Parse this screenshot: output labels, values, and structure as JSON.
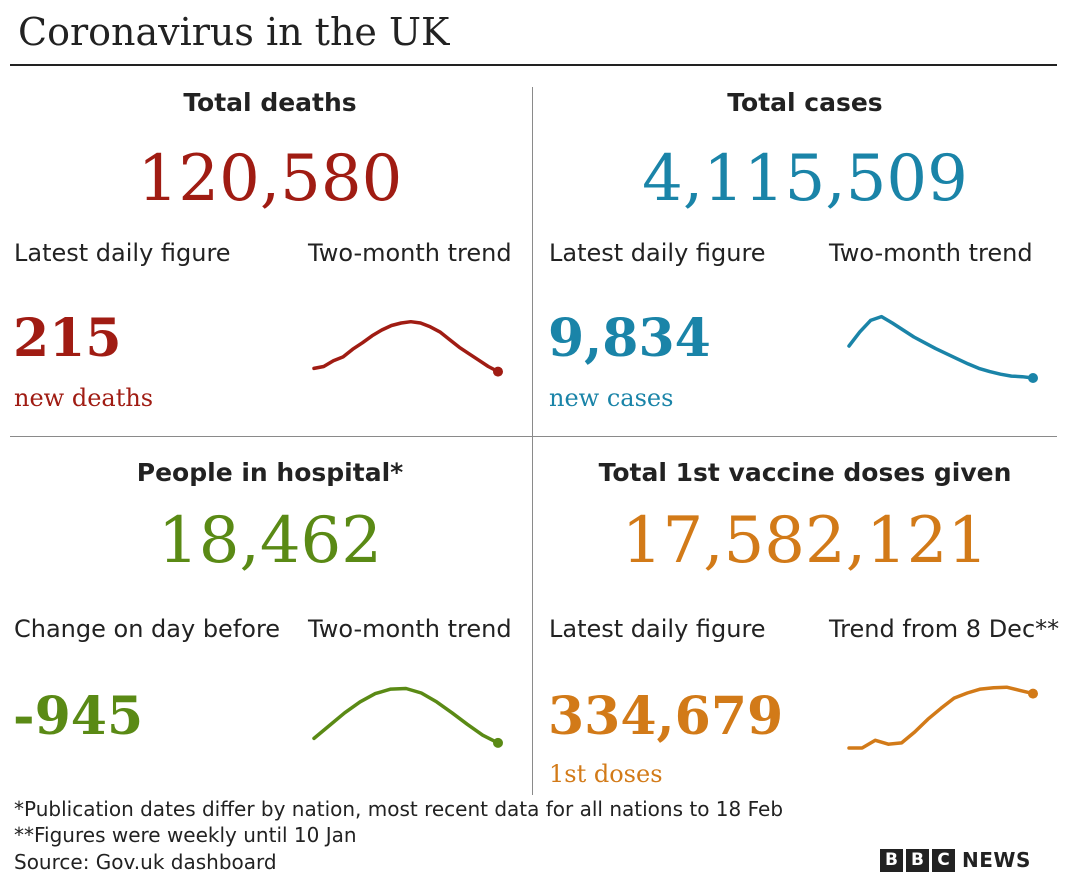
{
  "title": "Coronavirus in the UK",
  "colors": {
    "deaths": "#a01c13",
    "cases": "#1a84a8",
    "hospital": "#5a8a15",
    "vaccine": "#d27a18",
    "text": "#222222"
  },
  "panels": {
    "deaths": {
      "heading": "Total deaths",
      "total": "120,580",
      "left_label": "Latest daily figure",
      "right_label": "Two-month trend",
      "daily": "215",
      "sub": "new deaths"
    },
    "cases": {
      "heading": "Total cases",
      "total": "4,115,509",
      "left_label": "Latest daily figure",
      "right_label": "Two-month trend",
      "daily": "9,834",
      "sub": "new cases"
    },
    "hospital": {
      "heading": "People in hospital*",
      "total": "18,462",
      "left_label": "Change on day before",
      "right_label": "Two-month trend",
      "daily": "-945"
    },
    "vaccine": {
      "heading": "Total 1st vaccine doses given",
      "total": "17,582,121",
      "left_label": "Latest daily figure",
      "right_label": "Trend from 8 Dec**",
      "daily": "334,679",
      "sub": "1st doses"
    }
  },
  "footnotes": [
    "*Publication dates differ by nation, most recent data for all nations to 18 Feb",
    "**Figures were weekly until 10 Jan",
    "Source: Gov.uk dashboard"
  ],
  "logo": {
    "blocks": [
      "B",
      "B",
      "C"
    ],
    "word": "NEWS"
  },
  "chart_data": [
    {
      "type": "line",
      "name": "deaths-trend",
      "ylim": [
        0,
        1
      ],
      "values": [
        0.15,
        0.18,
        0.27,
        0.33,
        0.45,
        0.55,
        0.66,
        0.75,
        0.82,
        0.86,
        0.88,
        0.86,
        0.8,
        0.72,
        0.6,
        0.48,
        0.38,
        0.28,
        0.18,
        0.1
      ]
    },
    {
      "type": "line",
      "name": "cases-trend",
      "ylim": [
        0,
        1
      ],
      "values": [
        0.5,
        0.72,
        0.9,
        0.96,
        0.86,
        0.75,
        0.64,
        0.55,
        0.46,
        0.38,
        0.3,
        0.22,
        0.15,
        0.1,
        0.06,
        0.03,
        0.02,
        0.0
      ]
    },
    {
      "type": "line",
      "name": "hospital-trend",
      "ylim": [
        0,
        1
      ],
      "values": [
        0.15,
        0.35,
        0.55,
        0.72,
        0.85,
        0.92,
        0.93,
        0.86,
        0.72,
        0.55,
        0.37,
        0.2,
        0.08
      ]
    },
    {
      "type": "line",
      "name": "vaccine-trend",
      "ylim": [
        0,
        1
      ],
      "values": [
        0.0,
        0.0,
        0.12,
        0.06,
        0.08,
        0.25,
        0.45,
        0.62,
        0.78,
        0.86,
        0.92,
        0.94,
        0.95,
        0.9,
        0.85
      ]
    }
  ]
}
